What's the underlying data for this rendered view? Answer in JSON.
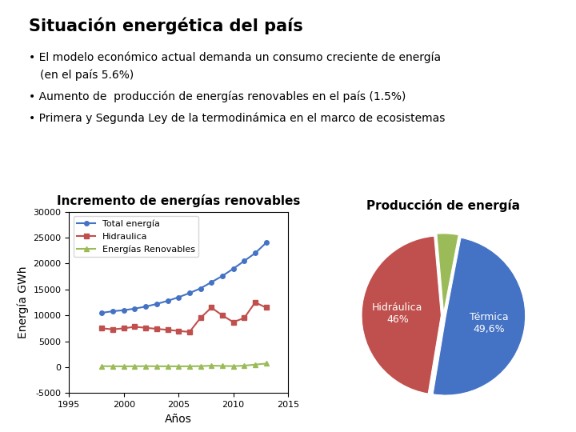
{
  "title": "Situación energética del país",
  "annotations": [
    "• El modelo económico actual demanda un consumo creciente de energía",
    "(en el país 5.6%)",
    "• Aumento de  producción de energías renovables en el país (1.5%)",
    "• Primera y Segunda Ley de la termodinámica en el marco de ecosistemas"
  ],
  "chart_data": [
    {
      "type": "line",
      "title": "Incremento de energías renovables",
      "x_label": "Años",
      "y_label": "Energía GWh",
      "x": [
        1998,
        1999,
        2000,
        2001,
        2002,
        2003,
        2004,
        2005,
        2006,
        2007,
        2008,
        2009,
        2010,
        2011,
        2012,
        2013
      ],
      "xlim": [
        1995,
        2015
      ],
      "xticks": [
        1995,
        2000,
        2005,
        2010,
        2015
      ],
      "ylim": [
        -5000,
        30000
      ],
      "yticks": [
        -5000,
        0,
        5000,
        10000,
        15000,
        20000,
        25000,
        30000
      ],
      "grid": false,
      "legend": "upper left",
      "series": [
        {
          "name": "Total energía",
          "color": "#4472c4",
          "marker": "circle",
          "values": [
            10500,
            10800,
            11000,
            11300,
            11700,
            12200,
            12800,
            13500,
            14300,
            15200,
            16400,
            17600,
            19000,
            20500,
            22000,
            24000
          ]
        },
        {
          "name": "Hidraulica",
          "color": "#c0504d",
          "marker": "square",
          "values": [
            7500,
            7300,
            7500,
            7800,
            7600,
            7400,
            7200,
            7000,
            6800,
            9500,
            11500,
            10000,
            8700,
            9500,
            12500,
            11500
          ]
        },
        {
          "name": "Energías Renovables",
          "color": "#9bbb59",
          "marker": "triangle",
          "values": [
            200,
            180,
            160,
            180,
            200,
            180,
            170,
            160,
            180,
            200,
            300,
            250,
            200,
            300,
            500,
            700
          ]
        }
      ]
    },
    {
      "type": "pie",
      "title": "Producción de energía",
      "categories": [
        "Hidráulica\n46%",
        "Térmica\n49,6%",
        null
      ],
      "values": [
        46.0,
        49.6,
        4.4
      ],
      "colors": [
        "#c0504d",
        "#4472c4",
        "#9bbb59"
      ]
    }
  ]
}
